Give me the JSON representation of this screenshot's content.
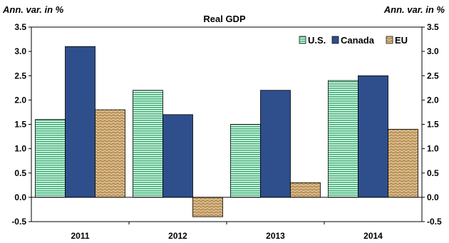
{
  "chart_data": {
    "type": "bar",
    "title": "Real GDP",
    "y_unit_left": "Ann. var. in %",
    "y_unit_right": "Ann. var. in %",
    "categories": [
      "2011",
      "2012",
      "2013",
      "2014"
    ],
    "series": [
      {
        "name": "U.S.",
        "values": [
          1.6,
          2.2,
          1.5,
          2.4
        ],
        "color": "#2fae6e",
        "pattern": "horizontal-stripes"
      },
      {
        "name": "Canada",
        "values": [
          3.1,
          1.7,
          2.2,
          2.5
        ],
        "color": "#2e4f8c",
        "pattern": "solid"
      },
      {
        "name": "EU",
        "values": [
          1.8,
          -0.4,
          0.3,
          1.4
        ],
        "color": "#c9a36c",
        "pattern": "zigzag"
      }
    ],
    "ylim": [
      -0.5,
      3.5
    ],
    "yticks": [
      "-0.5",
      "0.0",
      "0.5",
      "1.0",
      "1.5",
      "2.0",
      "2.5",
      "3.0",
      "3.5"
    ],
    "legend_position": "top-right",
    "grid": false
  }
}
